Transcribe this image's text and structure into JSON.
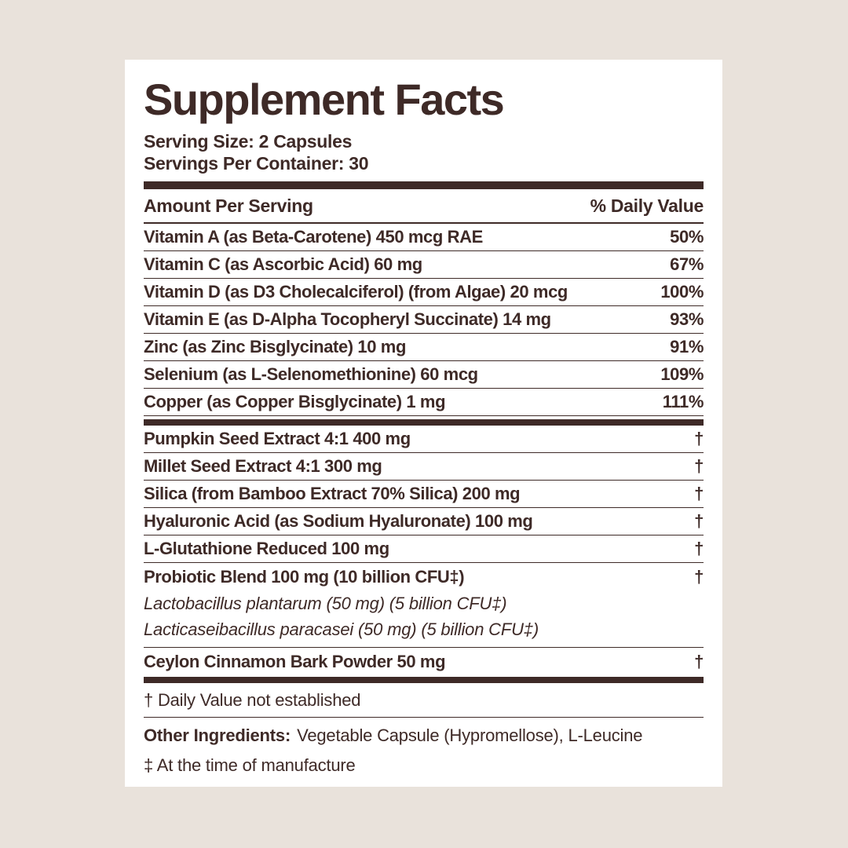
{
  "page": {
    "background_color": "#e9e2db",
    "card_color": "#ffffff",
    "text_color": "#3e2a27"
  },
  "header": {
    "title": "Supplement Facts",
    "serving_size": "Serving Size: 2 Capsules",
    "servings_per_container": "Servings Per Container: 30"
  },
  "columns": {
    "amount": "Amount Per Serving",
    "daily_value": "% Daily Value"
  },
  "vitamins": [
    {
      "name": "Vitamin A (as Beta-Carotene) 450 mcg RAE",
      "dv": "50%"
    },
    {
      "name": "Vitamin C (as Ascorbic Acid) 60 mg",
      "dv": "67%"
    },
    {
      "name": "Vitamin D (as D3 Cholecalciferol) (from Algae) 20 mcg",
      "dv": "100%"
    },
    {
      "name": "Vitamin E (as D-Alpha Tocopheryl Succinate) 14 mg",
      "dv": "93%"
    },
    {
      "name": "Zinc (as Zinc Bisglycinate) 10 mg",
      "dv": "91%"
    },
    {
      "name": "Selenium (as L-Selenomethionine) 60 mcg",
      "dv": "109%"
    },
    {
      "name": "Copper (as Copper Bisglycinate) 1 mg",
      "dv": "111%"
    }
  ],
  "botanicals": [
    {
      "name": "Pumpkin Seed Extract 4:1 400 mg",
      "dv": "†"
    },
    {
      "name": "Millet Seed Extract 4:1 300 mg",
      "dv": "†"
    },
    {
      "name": "Silica (from Bamboo Extract 70% Silica) 200 mg",
      "dv": "†"
    },
    {
      "name": "Hyaluronic Acid (as Sodium Hyaluronate) 100 mg",
      "dv": "†"
    },
    {
      "name": "L-Glutathione Reduced 100 mg",
      "dv": "†"
    }
  ],
  "probiotic": {
    "name": "Probiotic Blend 100 mg (10 billion CFU‡)",
    "dv": "†",
    "strains": [
      "Lactobacillus plantarum (50 mg) (5 billion CFU‡)",
      "Lacticaseibacillus paracasei (50 mg) (5 billion CFU‡)"
    ]
  },
  "cinnamon": {
    "name": "Ceylon Cinnamon Bark Powder 50 mg",
    "dv": "†"
  },
  "footnotes": {
    "daily_value_note": "† Daily Value not established",
    "other_ingredients_label": "Other Ingredients:",
    "other_ingredients_value": "Vegetable Capsule (Hypromellose), L-Leucine",
    "manufacture_note": "‡ At the time of manufacture"
  }
}
